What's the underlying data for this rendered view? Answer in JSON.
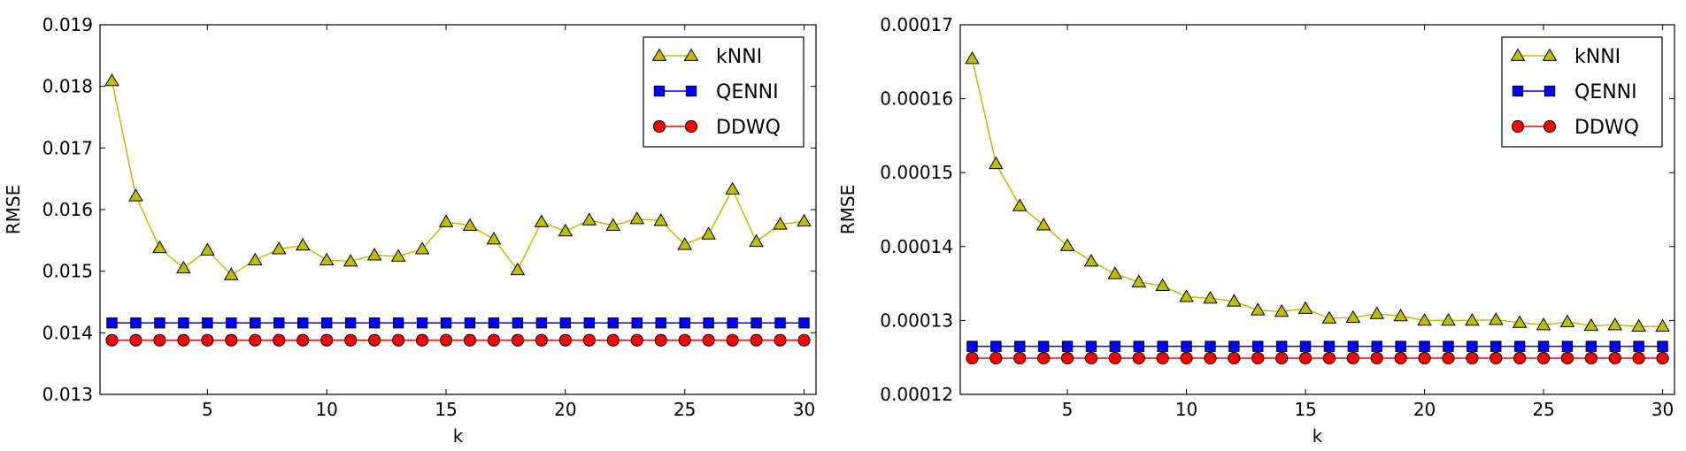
{
  "chart_data": [
    {
      "type": "line",
      "xlabel": "k",
      "ylabel": "RMSE",
      "xlim": [
        0.5,
        30.5
      ],
      "ylim": [
        0.013,
        0.019
      ],
      "xticks": [
        5,
        10,
        15,
        20,
        25,
        30
      ],
      "xtick_labels": [
        "5",
        "10",
        "15",
        "20",
        "25",
        "30"
      ],
      "yticks": [
        0.013,
        0.014,
        0.015,
        0.016,
        0.017,
        0.018,
        0.019
      ],
      "ytick_labels": [
        "0.013",
        "0.014",
        "0.015",
        "0.016",
        "0.017",
        "0.018",
        "0.019"
      ],
      "grid": false,
      "legend": "top-right",
      "x": [
        1,
        2,
        3,
        4,
        5,
        6,
        7,
        8,
        9,
        10,
        11,
        12,
        13,
        14,
        15,
        16,
        17,
        18,
        19,
        20,
        21,
        22,
        23,
        24,
        25,
        26,
        27,
        28,
        29,
        30
      ],
      "series": [
        {
          "name": "kNNI",
          "color": "#bfbf00",
          "marker": "triangle",
          "values": [
            0.01809,
            0.01622,
            0.01538,
            0.01505,
            0.01534,
            0.01494,
            0.01518,
            0.01536,
            0.01542,
            0.01518,
            0.01516,
            0.01526,
            0.01524,
            0.01536,
            0.0158,
            0.01574,
            0.01552,
            0.01502,
            0.0158,
            0.01565,
            0.01583,
            0.01574,
            0.01585,
            0.01582,
            0.01543,
            0.0156,
            0.01633,
            0.01548,
            0.01576,
            0.01581
          ]
        },
        {
          "name": "QENNI",
          "color": "#0000ff",
          "marker": "square",
          "values": [
            0.01416,
            0.01416,
            0.01416,
            0.01416,
            0.01416,
            0.01416,
            0.01416,
            0.01416,
            0.01416,
            0.01416,
            0.01416,
            0.01416,
            0.01416,
            0.01416,
            0.01416,
            0.01416,
            0.01416,
            0.01416,
            0.01416,
            0.01416,
            0.01416,
            0.01416,
            0.01416,
            0.01416,
            0.01416,
            0.01416,
            0.01416,
            0.01416,
            0.01416,
            0.01416
          ]
        },
        {
          "name": "DDWQ",
          "color": "#ff0000",
          "marker": "circle",
          "values": [
            0.01388,
            0.01388,
            0.01388,
            0.01388,
            0.01388,
            0.01388,
            0.01388,
            0.01388,
            0.01388,
            0.01388,
            0.01388,
            0.01388,
            0.01388,
            0.01388,
            0.01388,
            0.01388,
            0.01388,
            0.01388,
            0.01388,
            0.01388,
            0.01388,
            0.01388,
            0.01388,
            0.01388,
            0.01388,
            0.01388,
            0.01388,
            0.01388,
            0.01388,
            0.01388
          ]
        }
      ]
    },
    {
      "type": "line",
      "xlabel": "k",
      "ylabel": "RMSE",
      "xlim": [
        0.5,
        30.5
      ],
      "ylim": [
        0.00012,
        0.00017
      ],
      "xticks": [
        5,
        10,
        15,
        20,
        25,
        30
      ],
      "xtick_labels": [
        "5",
        "10",
        "15",
        "20",
        "25",
        "30"
      ],
      "yticks": [
        0.00012,
        0.00013,
        0.00014,
        0.00015,
        0.00016,
        0.00017
      ],
      "ytick_labels": [
        "0.00012",
        "0.00013",
        "0.00014",
        "0.00015",
        "0.00016",
        "0.00017"
      ],
      "grid": false,
      "legend": "top-right",
      "x": [
        1,
        2,
        3,
        4,
        5,
        6,
        7,
        8,
        9,
        10,
        11,
        12,
        13,
        14,
        15,
        16,
        17,
        18,
        19,
        20,
        21,
        22,
        23,
        24,
        25,
        26,
        27,
        28,
        29,
        30
      ],
      "series": [
        {
          "name": "kNNI",
          "color": "#bfbf00",
          "marker": "triangle",
          "values": [
            0.0001654,
            0.0001512,
            0.0001455,
            0.0001429,
            0.0001401,
            0.000138,
            0.0001363,
            0.0001352,
            0.0001347,
            0.0001332,
            0.000133,
            0.0001326,
            0.0001314,
            0.0001312,
            0.0001316,
            0.0001303,
            0.0001304,
            0.0001309,
            0.0001306,
            0.00013,
            0.00013,
            0.00013,
            0.0001301,
            0.0001297,
            0.0001294,
            0.0001298,
            0.0001293,
            0.0001294,
            0.0001292,
            0.0001292
          ]
        },
        {
          "name": "QENNI",
          "color": "#0000ff",
          "marker": "square",
          "values": [
            0.0001265,
            0.0001265,
            0.0001265,
            0.0001265,
            0.0001265,
            0.0001265,
            0.0001265,
            0.0001265,
            0.0001265,
            0.0001265,
            0.0001265,
            0.0001265,
            0.0001265,
            0.0001265,
            0.0001265,
            0.0001265,
            0.0001265,
            0.0001265,
            0.0001265,
            0.0001265,
            0.0001265,
            0.0001265,
            0.0001265,
            0.0001265,
            0.0001265,
            0.0001265,
            0.0001265,
            0.0001265,
            0.0001265,
            0.0001265
          ]
        },
        {
          "name": "DDWQ",
          "color": "#ff0000",
          "marker": "circle",
          "values": [
            0.0001249,
            0.0001249,
            0.0001249,
            0.0001249,
            0.0001249,
            0.0001249,
            0.0001249,
            0.0001249,
            0.0001249,
            0.0001249,
            0.0001249,
            0.0001249,
            0.0001249,
            0.0001249,
            0.0001249,
            0.0001249,
            0.0001249,
            0.0001249,
            0.0001249,
            0.0001249,
            0.0001249,
            0.0001249,
            0.0001249,
            0.0001249,
            0.0001249,
            0.0001249,
            0.0001249,
            0.0001249,
            0.0001249,
            0.0001249
          ]
        }
      ]
    }
  ]
}
